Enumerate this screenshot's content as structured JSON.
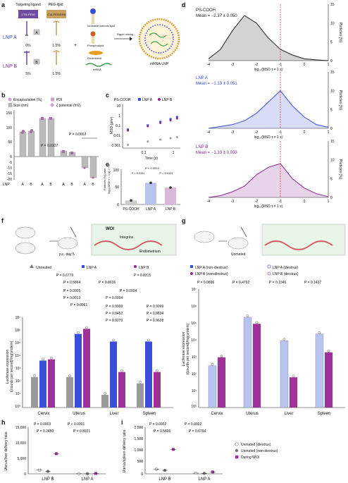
{
  "panels": {
    "a": {
      "letter": "a",
      "col_targeting": "Targeting ligand",
      "col_peg": "PEG-lipid",
      "ligand_name": "CTR-PE50",
      "peg_name": "C14-PEG2000",
      "lnp_a": "LNP A",
      "lnp_b": "LNP B",
      "a_box": "A",
      "b_box": "B",
      "lnp_a_target": "0%",
      "lnp_a_peg": "1.5%",
      "lnp_b_target": "5%",
      "lnp_b_peg": "1.5%",
      "plus": "+",
      "ionizable": "Ionizable cationic lipid",
      "phospholipid": "Phospholipid",
      "cholesterol": "Cholesterol",
      "mrna": "mRNA",
      "rapid": "Rapid mixing",
      "product": "mRNA-LNP"
    },
    "b": {
      "letter": "b",
      "legend": [
        "Encapsulation (%)",
        "PDI",
        "Size (nm)",
        "ζ potential (mV)"
      ],
      "y_ticks": [
        "150",
        "100",
        "50",
        "0",
        "-5",
        "-10",
        "-15",
        "-20"
      ],
      "p1": "P = 0.0107",
      "p2": "P = 0.0002",
      "lnp_label": "LNP",
      "x_labels": [
        "A",
        "B",
        "A",
        "B",
        "A",
        "B",
        "A",
        "B"
      ]
    },
    "c": {
      "letter": "c",
      "legend": [
        "PS-COOH",
        "LNP A",
        "LNP B"
      ],
      "ylabel": "MSD (μm²)",
      "xlabel": "Time (s)",
      "y_ticks": [
        "10",
        "1",
        "0.1",
        "0.01",
        "0.001"
      ],
      "x_ticks": [
        "0.1",
        "1"
      ]
    },
    "d": {
      "letter": "d",
      "xlabel": "log₁₀(MSD τ = 1 s)",
      "ylabel": "Particles (%)",
      "x_ticks": [
        "-4",
        "-3",
        "-2",
        "-1",
        "0",
        "1"
      ],
      "subpanels": [
        {
          "name": "PS-COOH",
          "mean": "Mean = −2.37 ± 0.050",
          "color": "#222222",
          "y_ticks": [
            "15",
            "10",
            "5",
            "0"
          ]
        },
        {
          "name": "LNP A",
          "mean": "Mean = −1.13 ± 0.051",
          "color": "#3a4fd8",
          "y_ticks": [
            "15",
            "10",
            "5",
            "0"
          ]
        },
        {
          "name": "LNP B",
          "mean": "Mean = −1.33 ± 0.038",
          "color": "#8a2a8a",
          "y_ticks": [
            "15",
            "10",
            "5",
            "0"
          ]
        }
      ]
    },
    "e": {
      "letter": "e",
      "ylabel_1": "Particles (%) with",
      "ylabel_2": "log₁₀(MSD τ = 1 s) > −1",
      "p_top": "P = 0.0533",
      "p_left": "P = 0.0111",
      "p_right": "P = 0.4151",
      "y_ticks": [
        "100",
        "50",
        "0"
      ],
      "x_labels": [
        "PS-COOH",
        "LNP A",
        "LNP B"
      ]
    },
    "f": {
      "letter": "f",
      "woi": "WOI",
      "pc_day": "p.c. day 5",
      "integrins": "Integrins",
      "endometrium": "Endometrium",
      "legend": [
        "Untreated",
        "LNP A",
        "LNP B"
      ],
      "ylabel_1": "Luciferase expression",
      "ylabel_2": "((counts per second)/mg protein)",
      "y_ticks": [
        "10⁷",
        "10⁶",
        "10⁵",
        "10⁴",
        "10³",
        "10²",
        "10¹",
        "10⁰"
      ],
      "x_labels": [
        "Cervix",
        "Uterus",
        "Liver",
        "Spleen"
      ],
      "p_values": [
        "P = 0.6779",
        "P = 0.8315",
        "P = 0.5864",
        "P = 0.8636",
        "P = 0.0005",
        "P = 0.0004",
        "P = 0.0013",
        "P = 0.0004",
        "P = 0.0061",
        "P = 0.9999",
        "P = 0.9999",
        "P = 0.9452",
        "P = 0.9834",
        "P = 0.9279",
        "P = 0.9628"
      ]
    },
    "g": {
      "letter": "g",
      "unmated": "Unmated",
      "legend": [
        "LNP A (non-diestrus)",
        "LNP A (diestrus)",
        "LNP B (non-diestrus)",
        "LNP B (diestrus)"
      ],
      "ylabel_1": "Luciferase expression",
      "ylabel_2": "((counts per second)/mg protein)",
      "y_ticks": [
        "10⁷",
        "10⁶",
        "10⁵",
        "10⁴",
        "10³",
        "10²",
        "10¹",
        "10⁰"
      ],
      "x_labels": [
        "Cervix",
        "Uterus",
        "Liver",
        "Spleen"
      ],
      "p_values": [
        "P = 0.0896",
        "P = 0.4792",
        "P = 0.1546",
        "P = 0.1437"
      ]
    },
    "h": {
      "letter": "h",
      "ylabel": "Uterus/liver delivery ratio",
      "y_ticks": [
        "15,000",
        "10,000",
        "5,000",
        "0"
      ],
      "p_values": [
        "P = 0.0003",
        "P < 0.0001",
        "P = 0.2450",
        "P = 0.8921"
      ],
      "x_labels": [
        "LNP B",
        "LNP A"
      ]
    },
    "i": {
      "letter": "i",
      "ylabel": "Uterus/spleen delivery ratio",
      "y_ticks": [
        "2,000",
        "1,500",
        "1,000",
        "500",
        "0"
      ],
      "p_values": [
        "P = 0.0002",
        "P = 0.0002",
        "P = 0.5896",
        "P = 0.6794"
      ],
      "x_labels": [
        "LNP B",
        "LNP A"
      ],
      "legend": [
        "Unmated (diestrus)",
        "Unmated (non-diestrus)",
        "During WOI"
      ]
    }
  },
  "colors": {
    "lnp_a": "#3a4fd8",
    "lnp_b": "#8a2a8a",
    "gray": "#9a9a9a",
    "light_gray": "#cccccc",
    "light_purple": "#d9b8d9",
    "light_blue": "#b8c3f0",
    "magenta": "#a0309a"
  },
  "chart_data": [
    {
      "type": "bar",
      "panel": "e",
      "categories": [
        "PS-COOH",
        "LNP A",
        "LNP B"
      ],
      "values": [
        12,
        64,
        50
      ],
      "ylim": [
        0,
        100
      ]
    },
    {
      "type": "line",
      "panel": "c",
      "series": [
        {
          "name": "PS-COOH",
          "x": [
            0.067,
            0.2,
            0.4,
            0.7,
            1.0
          ],
          "y": [
            0.002,
            0.004,
            0.006,
            0.008,
            0.01
          ]
        },
        {
          "name": "LNP A",
          "x": [
            0.067,
            0.2,
            0.4,
            0.7,
            1.0
          ],
          "y": [
            0.05,
            0.12,
            0.25,
            0.45,
            0.7
          ]
        },
        {
          "name": "LNP B",
          "x": [
            0.067,
            0.2,
            0.4,
            0.7,
            1.0
          ],
          "y": [
            0.04,
            0.1,
            0.2,
            0.35,
            0.5
          ]
        }
      ]
    },
    {
      "type": "line",
      "panel": "d",
      "x": [
        -4.0,
        -3.5,
        -3.0,
        -2.5,
        -2.0,
        -1.5,
        -1.0,
        -0.5,
        0.0,
        0.5,
        1.0
      ],
      "series": [
        {
          "name": "PS-COOH",
          "values": [
            0.5,
            3,
            8,
            12,
            10,
            6,
            3,
            1.5,
            0.5,
            0.2,
            0
          ]
        },
        {
          "name": "LNP A",
          "values": [
            0,
            0.5,
            1,
            2,
            4,
            7,
            10,
            6,
            3,
            1,
            0.3
          ]
        },
        {
          "name": "LNP B",
          "values": [
            0,
            0.5,
            1.5,
            3,
            6,
            8,
            9,
            5,
            2.5,
            1,
            0.2
          ]
        }
      ],
      "ylim": [
        0,
        15
      ]
    },
    {
      "type": "bar",
      "panel": "h",
      "categories": [
        "LNP B",
        "LNP A"
      ],
      "series": [
        {
          "name": "Unmated (diestrus)",
          "values": [
            1200,
            50
          ]
        },
        {
          "name": "Unmated (non-diestrus)",
          "values": [
            800,
            40
          ]
        },
        {
          "name": "During WOI",
          "values": [
            6500,
            120
          ]
        }
      ],
      "ylim": [
        0,
        15000
      ]
    },
    {
      "type": "bar",
      "panel": "i",
      "categories": [
        "LNP B",
        "LNP A"
      ],
      "series": [
        {
          "name": "Unmated (diestrus)",
          "values": [
            200,
            30
          ]
        },
        {
          "name": "Unmated (non-diestrus)",
          "values": [
            150,
            20
          ]
        },
        {
          "name": "During WOI",
          "values": [
            1050,
            80
          ]
        }
      ],
      "ylim": [
        0,
        2000
      ]
    }
  ]
}
